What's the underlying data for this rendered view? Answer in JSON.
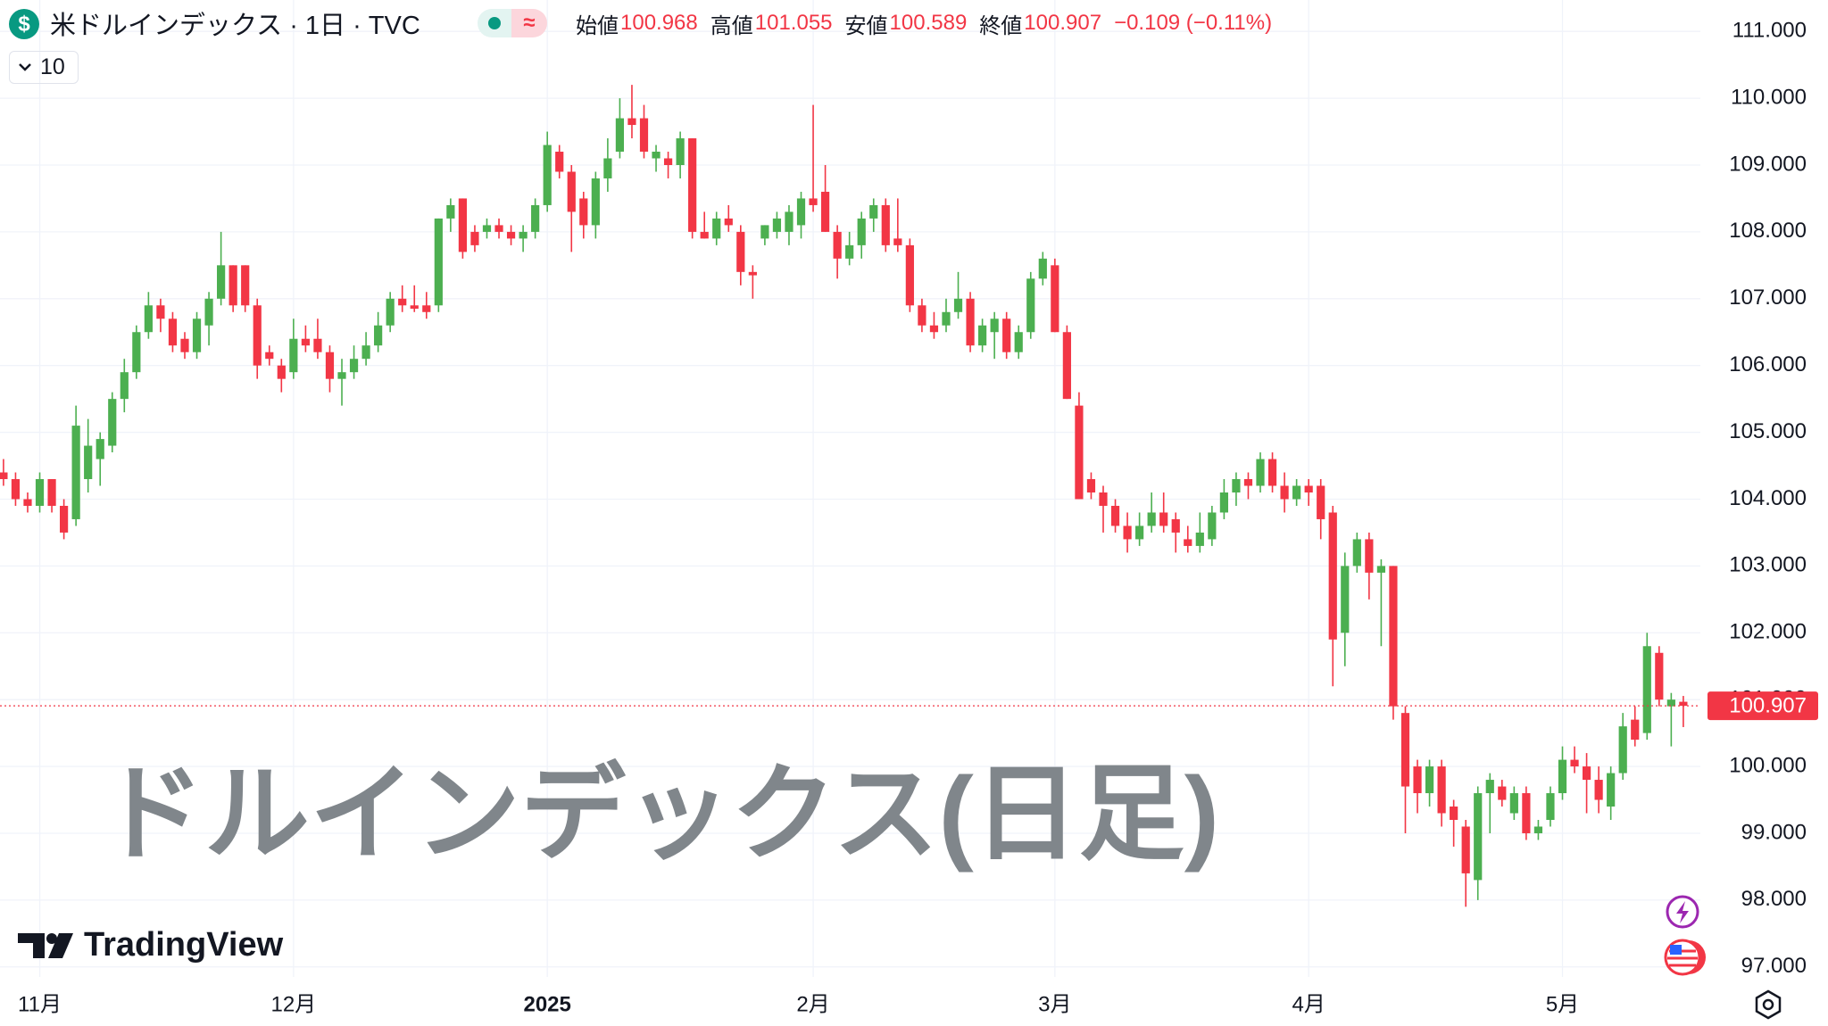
{
  "header": {
    "symbol_icon": "$",
    "title": "米ドルインデックス · 1日 · TVC",
    "status_icon": "≈",
    "open_label": "始値",
    "open": "100.968",
    "high_label": "高値",
    "high": "101.055",
    "low_label": "安値",
    "low": "100.589",
    "close_label": "終値",
    "close": "100.907",
    "change": "−0.109 (−0.11%)",
    "interval_count": "10"
  },
  "watermark": "ドルインデックス(日足)",
  "logo": "TradingView",
  "chart_data": {
    "type": "candlestick",
    "up_color": "#4caf50",
    "down_color": "#f23645",
    "grid": true,
    "ylim": [
      96.85,
      111.47
    ],
    "yticks": [
      {
        "value": 97,
        "label": "97.000"
      },
      {
        "value": 98,
        "label": "98.000"
      },
      {
        "value": 99,
        "label": "99.000"
      },
      {
        "value": 100,
        "label": "100.000"
      },
      {
        "value": 101,
        "label": "101.000"
      },
      {
        "value": 102,
        "label": "102.000"
      },
      {
        "value": 103,
        "label": "103.000"
      },
      {
        "value": 104,
        "label": "104.000"
      },
      {
        "value": 105,
        "label": "105.000"
      },
      {
        "value": 106,
        "label": "106.000"
      },
      {
        "value": 107,
        "label": "107.000"
      },
      {
        "value": 108,
        "label": "108.000"
      },
      {
        "value": 109,
        "label": "109.000"
      },
      {
        "value": 110,
        "label": "110.000"
      },
      {
        "value": 111,
        "label": "111.000"
      }
    ],
    "last_price": 100.907,
    "categories": [
      null,
      null,
      null,
      "11月",
      null,
      null,
      null,
      null,
      null,
      null,
      null,
      null,
      null,
      null,
      null,
      null,
      null,
      null,
      null,
      null,
      null,
      null,
      null,
      null,
      "12月",
      null,
      null,
      null,
      null,
      null,
      null,
      null,
      null,
      null,
      null,
      null,
      null,
      null,
      null,
      null,
      null,
      null,
      null,
      null,
      null,
      "2025",
      null,
      null,
      null,
      null,
      null,
      null,
      null,
      null,
      null,
      null,
      null,
      null,
      null,
      null,
      null,
      null,
      null,
      null,
      null,
      null,
      null,
      "2月",
      null,
      null,
      null,
      null,
      null,
      null,
      null,
      null,
      null,
      null,
      null,
      null,
      null,
      null,
      null,
      null,
      null,
      null,
      null,
      "3月",
      null,
      null,
      null,
      null,
      null,
      null,
      null,
      null,
      null,
      null,
      null,
      null,
      null,
      null,
      null,
      null,
      null,
      null,
      null,
      null,
      "4月",
      null,
      null,
      null,
      null,
      null,
      null,
      null,
      null,
      null,
      null,
      null,
      null,
      null,
      null,
      null,
      null,
      null,
      null,
      null,
      null,
      "5月",
      null,
      null,
      null,
      null,
      null,
      null,
      null,
      null,
      null,
      null
    ],
    "ohlc": [
      [
        104.4,
        104.6,
        104.2,
        104.3
      ],
      [
        104.3,
        104.4,
        103.9,
        104.0
      ],
      [
        104.0,
        104.1,
        103.8,
        103.9
      ],
      [
        103.9,
        104.4,
        103.8,
        104.3
      ],
      [
        104.3,
        104.3,
        103.8,
        103.9
      ],
      [
        103.9,
        104.0,
        103.4,
        103.5
      ],
      [
        103.7,
        105.4,
        103.6,
        105.1
      ],
      [
        104.3,
        105.2,
        104.1,
        104.8
      ],
      [
        104.6,
        105.0,
        104.2,
        104.9
      ],
      [
        104.8,
        105.6,
        104.7,
        105.5
      ],
      [
        105.5,
        106.1,
        105.3,
        105.9
      ],
      [
        105.9,
        106.6,
        105.8,
        106.5
      ],
      [
        106.5,
        107.1,
        106.4,
        106.9
      ],
      [
        106.9,
        107.0,
        106.5,
        106.7
      ],
      [
        106.7,
        106.8,
        106.2,
        106.3
      ],
      [
        106.4,
        106.5,
        106.1,
        106.2
      ],
      [
        106.2,
        106.8,
        106.1,
        106.7
      ],
      [
        106.6,
        107.1,
        106.3,
        107.0
      ],
      [
        107.0,
        108.0,
        106.9,
        107.5
      ],
      [
        107.5,
        107.5,
        106.8,
        106.9
      ],
      [
        107.5,
        107.5,
        106.8,
        106.9
      ],
      [
        106.9,
        107.0,
        105.8,
        106.0
      ],
      [
        106.2,
        106.3,
        106.0,
        106.1
      ],
      [
        106.0,
        106.1,
        105.6,
        105.8
      ],
      [
        105.9,
        106.7,
        105.8,
        106.4
      ],
      [
        106.4,
        106.6,
        106.2,
        106.3
      ],
      [
        106.4,
        106.7,
        106.1,
        106.2
      ],
      [
        106.2,
        106.3,
        105.6,
        105.8
      ],
      [
        105.8,
        106.1,
        105.4,
        105.9
      ],
      [
        105.9,
        106.3,
        105.8,
        106.1
      ],
      [
        106.1,
        106.5,
        106.0,
        106.3
      ],
      [
        106.3,
        106.8,
        106.2,
        106.6
      ],
      [
        106.6,
        107.1,
        106.5,
        107.0
      ],
      [
        107.0,
        107.2,
        106.8,
        106.9
      ],
      [
        106.9,
        107.2,
        106.8,
        106.85
      ],
      [
        106.9,
        107.1,
        106.7,
        106.8
      ],
      [
        106.9,
        108.2,
        106.8,
        108.2
      ],
      [
        108.2,
        108.5,
        108.0,
        108.4
      ],
      [
        108.5,
        108.5,
        107.6,
        107.7
      ],
      [
        108.0,
        108.1,
        107.7,
        107.8
      ],
      [
        108.0,
        108.2,
        107.9,
        108.1
      ],
      [
        108.1,
        108.2,
        107.9,
        108.0
      ],
      [
        108.0,
        108.1,
        107.8,
        107.9
      ],
      [
        107.9,
        108.1,
        107.7,
        108.0
      ],
      [
        108.0,
        108.5,
        107.9,
        108.4
      ],
      [
        108.4,
        109.5,
        108.3,
        109.3
      ],
      [
        109.2,
        109.3,
        108.8,
        108.9
      ],
      [
        108.9,
        109.0,
        107.7,
        108.3
      ],
      [
        108.5,
        108.6,
        107.9,
        108.1
      ],
      [
        108.1,
        108.9,
        107.9,
        108.8
      ],
      [
        108.8,
        109.4,
        108.6,
        109.1
      ],
      [
        109.2,
        110.0,
        109.1,
        109.7
      ],
      [
        109.7,
        110.2,
        109.4,
        109.6
      ],
      [
        109.7,
        109.9,
        109.1,
        109.2
      ],
      [
        109.1,
        109.3,
        108.9,
        109.2
      ],
      [
        109.1,
        109.2,
        108.8,
        109.0
      ],
      [
        109.0,
        109.5,
        108.8,
        109.4
      ],
      [
        109.4,
        109.4,
        107.9,
        108.0
      ],
      [
        108.0,
        108.3,
        107.9,
        107.9
      ],
      [
        107.9,
        108.3,
        107.8,
        108.2
      ],
      [
        108.2,
        108.4,
        108.0,
        108.1
      ],
      [
        108.0,
        108.1,
        107.2,
        107.4
      ],
      [
        107.4,
        107.5,
        107.0,
        107.35
      ],
      [
        107.9,
        108.1,
        107.8,
        108.1
      ],
      [
        108.0,
        108.3,
        107.9,
        108.2
      ],
      [
        108.0,
        108.4,
        107.8,
        108.3
      ],
      [
        108.1,
        108.6,
        107.9,
        108.5
      ],
      [
        108.5,
        109.9,
        108.3,
        108.4
      ],
      [
        108.6,
        109.0,
        108.0,
        108.0
      ],
      [
        108.0,
        108.1,
        107.3,
        107.6
      ],
      [
        107.6,
        108.0,
        107.5,
        107.8
      ],
      [
        107.8,
        108.3,
        107.6,
        108.2
      ],
      [
        108.2,
        108.5,
        108.0,
        108.4
      ],
      [
        108.4,
        108.5,
        107.7,
        107.8
      ],
      [
        107.9,
        108.5,
        107.7,
        107.8
      ],
      [
        107.8,
        107.9,
        106.8,
        106.9
      ],
      [
        106.9,
        107.0,
        106.5,
        106.6
      ],
      [
        106.6,
        106.8,
        106.4,
        106.5
      ],
      [
        106.6,
        107.0,
        106.5,
        106.8
      ],
      [
        106.8,
        107.4,
        106.7,
        107.0
      ],
      [
        107.0,
        107.1,
        106.2,
        106.3
      ],
      [
        106.3,
        106.7,
        106.2,
        106.6
      ],
      [
        106.5,
        106.8,
        106.1,
        106.7
      ],
      [
        106.7,
        106.8,
        106.1,
        106.2
      ],
      [
        106.2,
        106.6,
        106.1,
        106.5
      ],
      [
        106.5,
        107.4,
        106.4,
        107.3
      ],
      [
        107.3,
        107.7,
        107.2,
        107.6
      ],
      [
        107.5,
        107.6,
        106.5,
        106.5
      ],
      [
        106.5,
        106.6,
        105.5,
        105.5
      ],
      [
        105.4,
        105.6,
        104.0,
        104.0
      ],
      [
        104.3,
        104.4,
        104.0,
        104.1
      ],
      [
        104.1,
        104.2,
        103.5,
        103.9
      ],
      [
        103.9,
        104.0,
        103.5,
        103.6
      ],
      [
        103.6,
        103.8,
        103.2,
        103.4
      ],
      [
        103.4,
        103.8,
        103.3,
        103.6
      ],
      [
        103.6,
        104.1,
        103.5,
        103.8
      ],
      [
        103.8,
        104.1,
        103.5,
        103.6
      ],
      [
        103.7,
        103.8,
        103.2,
        103.5
      ],
      [
        103.4,
        103.6,
        103.2,
        103.3
      ],
      [
        103.3,
        103.8,
        103.2,
        103.5
      ],
      [
        103.4,
        103.9,
        103.3,
        103.8
      ],
      [
        103.8,
        104.3,
        103.7,
        104.1
      ],
      [
        104.1,
        104.4,
        103.9,
        104.3
      ],
      [
        104.3,
        104.4,
        104.0,
        104.2
      ],
      [
        104.2,
        104.7,
        104.1,
        104.6
      ],
      [
        104.6,
        104.7,
        104.1,
        104.2
      ],
      [
        104.2,
        104.4,
        103.8,
        104.0
      ],
      [
        104.0,
        104.3,
        103.9,
        104.2
      ],
      [
        104.2,
        104.3,
        103.9,
        104.1
      ],
      [
        104.2,
        104.3,
        103.4,
        103.7
      ],
      [
        103.8,
        103.9,
        101.2,
        101.9
      ],
      [
        102.0,
        103.2,
        101.5,
        103.0
      ],
      [
        103.0,
        103.5,
        102.9,
        103.4
      ],
      [
        103.4,
        103.5,
        102.5,
        102.9
      ],
      [
        102.9,
        103.1,
        101.8,
        103.0
      ],
      [
        103.0,
        103.0,
        100.7,
        100.9
      ],
      [
        100.8,
        100.9,
        99.0,
        99.7
      ],
      [
        100.0,
        100.1,
        99.3,
        99.6
      ],
      [
        99.6,
        100.1,
        99.4,
        100.0
      ],
      [
        100.0,
        100.1,
        99.1,
        99.3
      ],
      [
        99.4,
        99.5,
        98.8,
        99.2
      ],
      [
        99.1,
        99.2,
        97.9,
        98.4
      ],
      [
        98.3,
        99.7,
        98.0,
        99.6
      ],
      [
        99.6,
        99.9,
        99.0,
        99.8
      ],
      [
        99.7,
        99.8,
        99.4,
        99.5
      ],
      [
        99.3,
        99.7,
        99.2,
        99.6
      ],
      [
        99.6,
        99.7,
        98.9,
        99.0
      ],
      [
        99.0,
        99.2,
        98.9,
        99.1
      ],
      [
        99.2,
        99.7,
        99.1,
        99.6
      ],
      [
        99.6,
        100.3,
        99.5,
        100.1
      ],
      [
        100.1,
        100.3,
        99.9,
        100.0
      ],
      [
        100.0,
        100.2,
        99.3,
        99.8
      ],
      [
        99.8,
        100.0,
        99.3,
        99.5
      ],
      [
        99.4,
        100.0,
        99.2,
        99.9
      ],
      [
        99.9,
        100.8,
        99.8,
        100.6
      ],
      [
        100.7,
        100.9,
        100.3,
        100.4
      ],
      [
        100.5,
        102.0,
        100.4,
        101.8
      ],
      [
        101.7,
        101.8,
        100.9,
        101.0
      ],
      [
        100.9,
        101.1,
        100.3,
        101.0
      ],
      [
        100.968,
        101.055,
        100.589,
        100.907
      ]
    ]
  }
}
